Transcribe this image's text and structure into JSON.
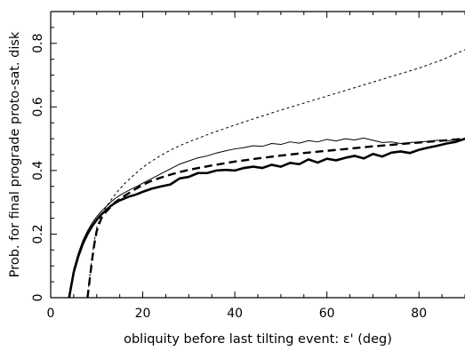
{
  "chart_data": {
    "type": "line",
    "title": "",
    "xlabel": "obliquity before last tilting event: ε' (deg)",
    "ylabel": "Prob. for final prograde proto-sat. disk",
    "xlim": [
      0,
      90
    ],
    "ylim": [
      0,
      0.9
    ],
    "xticks": [
      0,
      20,
      40,
      60,
      80
    ],
    "yticks": [
      0,
      0.2,
      0.4,
      0.6,
      0.8
    ],
    "xtick_labels": [
      "0",
      "20",
      "40",
      "60",
      "80"
    ],
    "ytick_labels": [
      "0",
      "0.2",
      "0.4",
      "0.6",
      "0.8"
    ],
    "grid": false,
    "legend": "none",
    "series": [
      {
        "style": "thick-solid",
        "color": "#000000",
        "x": [
          4,
          5,
          6,
          7,
          8,
          9,
          10,
          11,
          12,
          13,
          14,
          15,
          16,
          17,
          18,
          19,
          20,
          22,
          24,
          26,
          28,
          30,
          32,
          34,
          36,
          38,
          40,
          42,
          44,
          46,
          48,
          50,
          52,
          54,
          56,
          58,
          60,
          62,
          64,
          66,
          68,
          70,
          72,
          74,
          76,
          78,
          80,
          82,
          84,
          86,
          88,
          90
        ],
        "y": [
          0.0,
          0.08,
          0.13,
          0.17,
          0.2,
          0.225,
          0.245,
          0.262,
          0.275,
          0.288,
          0.298,
          0.306,
          0.312,
          0.318,
          0.322,
          0.327,
          0.333,
          0.343,
          0.35,
          0.356,
          0.375,
          0.38,
          0.392,
          0.392,
          0.4,
          0.402,
          0.4,
          0.408,
          0.412,
          0.408,
          0.418,
          0.412,
          0.424,
          0.42,
          0.435,
          0.425,
          0.437,
          0.432,
          0.44,
          0.446,
          0.438,
          0.452,
          0.444,
          0.456,
          0.46,
          0.455,
          0.465,
          0.472,
          0.478,
          0.485,
          0.49,
          0.5
        ]
      },
      {
        "style": "thin-solid",
        "color": "#000000",
        "x": [
          4,
          5,
          6,
          7,
          8,
          9,
          10,
          11,
          12,
          13,
          14,
          15,
          16,
          17,
          18,
          19,
          20,
          22,
          24,
          26,
          28,
          30,
          32,
          34,
          36,
          38,
          40,
          42,
          44,
          46,
          48,
          50,
          52,
          54,
          56,
          58,
          60,
          62,
          64,
          66,
          68,
          70,
          72,
          74,
          76,
          78,
          80,
          82,
          84,
          86,
          88,
          90
        ],
        "y": [
          0.0,
          0.09,
          0.14,
          0.18,
          0.21,
          0.235,
          0.255,
          0.272,
          0.286,
          0.3,
          0.312,
          0.322,
          0.33,
          0.338,
          0.345,
          0.352,
          0.36,
          0.375,
          0.39,
          0.405,
          0.42,
          0.43,
          0.44,
          0.446,
          0.455,
          0.462,
          0.468,
          0.472,
          0.478,
          0.476,
          0.485,
          0.482,
          0.49,
          0.486,
          0.494,
          0.49,
          0.498,
          0.493,
          0.5,
          0.496,
          0.502,
          0.495,
          0.488,
          0.49,
          0.485,
          0.488,
          0.49,
          0.492,
          0.495,
          0.493,
          0.497,
          0.5
        ]
      },
      {
        "style": "thick-dashed",
        "color": "#000000",
        "x": [
          8,
          8.5,
          9,
          9.5,
          10,
          11,
          12,
          13,
          14,
          15,
          16,
          18,
          20,
          22,
          24,
          26,
          28,
          30,
          35,
          40,
          45,
          50,
          55,
          60,
          65,
          70,
          75,
          80,
          85,
          90
        ],
        "y": [
          0.0,
          0.06,
          0.12,
          0.17,
          0.21,
          0.25,
          0.27,
          0.285,
          0.3,
          0.31,
          0.32,
          0.338,
          0.355,
          0.368,
          0.378,
          0.387,
          0.395,
          0.402,
          0.416,
          0.428,
          0.438,
          0.447,
          0.455,
          0.462,
          0.469,
          0.476,
          0.482,
          0.488,
          0.494,
          0.5
        ]
      },
      {
        "style": "thin-dashed",
        "color": "#000000",
        "x": [
          8,
          8.5,
          9,
          9.5,
          10,
          11,
          12,
          13,
          14,
          15,
          16,
          18,
          20,
          22,
          24,
          26,
          28,
          30,
          35,
          40,
          45,
          50,
          55,
          60,
          65,
          70,
          75,
          80,
          85,
          90
        ],
        "y": [
          0.0,
          0.07,
          0.13,
          0.18,
          0.22,
          0.26,
          0.285,
          0.305,
          0.325,
          0.342,
          0.358,
          0.385,
          0.41,
          0.43,
          0.448,
          0.464,
          0.478,
          0.49,
          0.518,
          0.543,
          0.567,
          0.59,
          0.612,
          0.634,
          0.656,
          0.678,
          0.7,
          0.722,
          0.748,
          0.78
        ]
      }
    ]
  }
}
